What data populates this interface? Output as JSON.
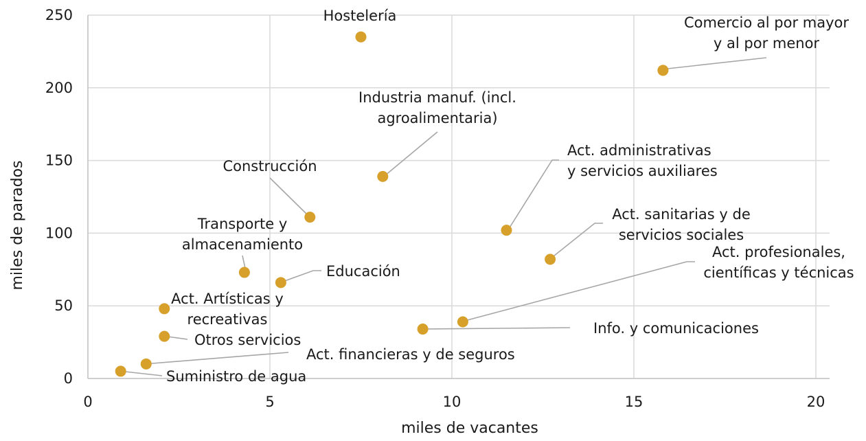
{
  "chart_data": {
    "type": "scatter",
    "title": "",
    "xlabel": "miles de vacantes",
    "ylabel": "miles de parados",
    "xlim": [
      0,
      20
    ],
    "ylim": [
      0,
      250
    ],
    "x_ticks": [
      "0",
      "5",
      "10",
      "15",
      "20"
    ],
    "y_ticks": [
      "0",
      "50",
      "100",
      "150",
      "200",
      "250"
    ],
    "grid": true,
    "marker_color": "#D6A02B",
    "points": [
      {
        "name": "Hostelería",
        "lines": [
          "Hostelería"
        ],
        "x": 7.5,
        "y": 235
      },
      {
        "name": "Comercio al por mayor y al por menor",
        "lines": [
          "Comercio al por mayor",
          "y al por menor"
        ],
        "x": 15.8,
        "y": 212
      },
      {
        "name": "Industria manuf. (incl. agroalimentaria)",
        "lines": [
          "Industria manuf. (incl.",
          "agroalimentaria)"
        ],
        "x": 8.1,
        "y": 139
      },
      {
        "name": "Construcción",
        "lines": [
          "Construcción"
        ],
        "x": 6.1,
        "y": 111
      },
      {
        "name": "Act. administrativas y servicios auxiliares",
        "lines": [
          "Act. administrativas",
          "y servicios auxiliares"
        ],
        "x": 11.5,
        "y": 102
      },
      {
        "name": "Act. sanitarias y de servicios sociales",
        "lines": [
          "Act. sanitarias y de",
          "servicios sociales"
        ],
        "x": 12.7,
        "y": 82
      },
      {
        "name": "Transporte y almacenamiento",
        "lines": [
          "Transporte y",
          "almacenamiento"
        ],
        "x": 4.3,
        "y": 73
      },
      {
        "name": "Educación",
        "lines": [
          "Educación"
        ],
        "x": 5.3,
        "y": 66
      },
      {
        "name": "Act. profesionales, científicas y técnicas",
        "lines": [
          "Act. profesionales,",
          "científicas y técnicas"
        ],
        "x": 10.3,
        "y": 39
      },
      {
        "name": "Act. Artísticas y recreativas",
        "lines": [
          "Act. Artísticas y",
          "recreativas"
        ],
        "x": 2.1,
        "y": 48
      },
      {
        "name": "Info. y comunicaciones",
        "lines": [
          "Info. y comunicaciones"
        ],
        "x": 9.2,
        "y": 34
      },
      {
        "name": "Otros servicios",
        "lines": [
          "Otros servicios"
        ],
        "x": 2.1,
        "y": 29
      },
      {
        "name": "Act. financieras y de seguros",
        "lines": [
          "Act. financieras y de seguros"
        ],
        "x": 1.6,
        "y": 10
      },
      {
        "name": "Suministro de agua",
        "lines": [
          "Suministro de agua"
        ],
        "x": 0.9,
        "y": 5
      }
    ]
  }
}
